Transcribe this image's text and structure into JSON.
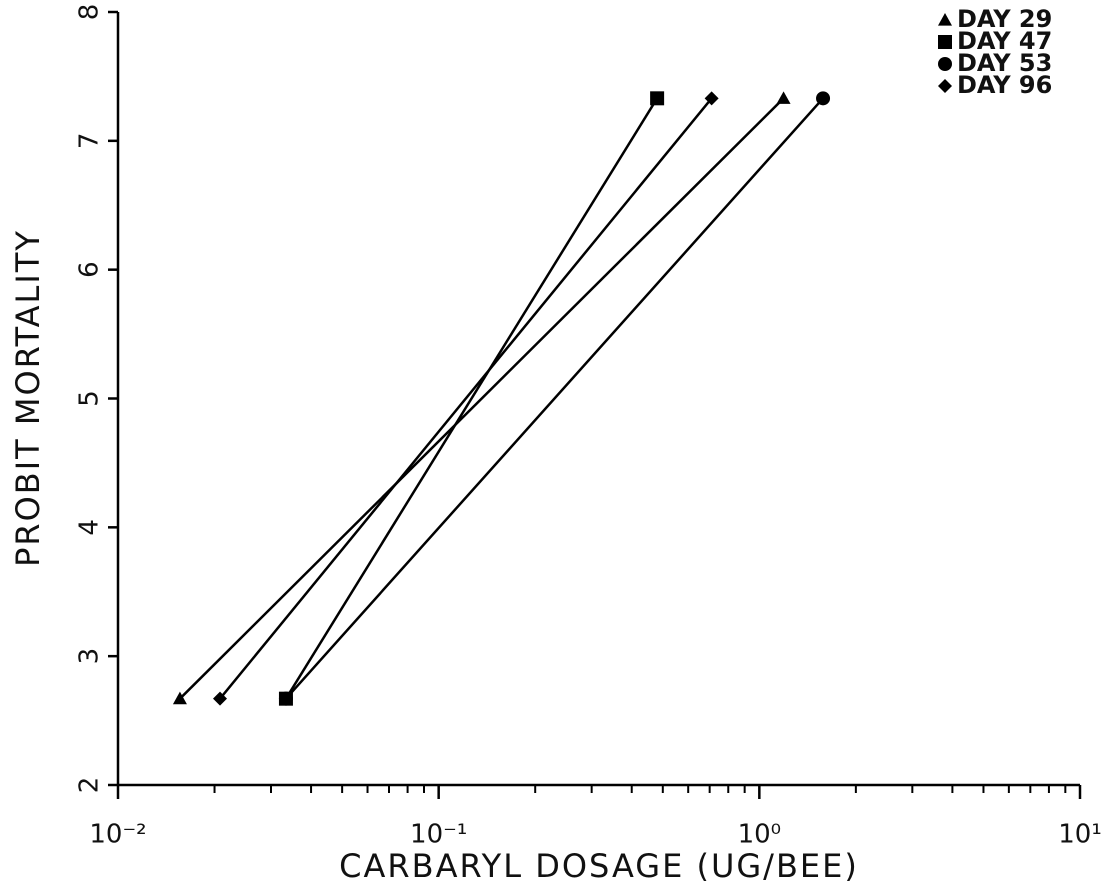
{
  "chart_data": {
    "type": "line",
    "xlabel": "CARBARYL DOSAGE (UG/BEE)",
    "ylabel": "PROBIT MORTALITY",
    "xscale": "log",
    "xlim": [
      0.01,
      10
    ],
    "xticks": [
      {
        "value": 0.01,
        "label": "10⁻²"
      },
      {
        "value": 0.1,
        "label": "10⁻¹"
      },
      {
        "value": 1,
        "label": "10⁰"
      },
      {
        "value": 10,
        "label": "10¹"
      }
    ],
    "xminorticks": [
      0.02,
      0.03,
      0.04,
      0.05,
      0.06,
      0.07,
      0.08,
      0.09,
      0.2,
      0.3,
      0.4,
      0.5,
      0.6,
      0.7,
      0.8,
      0.9,
      2,
      3,
      4,
      5,
      6,
      7,
      8,
      9
    ],
    "ylim": [
      2,
      8
    ],
    "yticks": [
      2,
      3,
      4,
      5,
      6,
      7,
      8
    ],
    "legend": "upper right",
    "series": [
      {
        "name": "DAY 29",
        "marker": "triangle",
        "color": "#000000",
        "x": [
          0.0156,
          1.19
        ],
        "values": [
          2.67,
          7.33
        ]
      },
      {
        "name": "DAY 47",
        "marker": "square",
        "color": "#000000",
        "x": [
          0.0334,
          0.48
        ],
        "values": [
          2.67,
          7.33
        ]
      },
      {
        "name": "DAY 53",
        "marker": "circle",
        "color": "#000000",
        "x": [
          0.0334,
          1.58
        ],
        "values": [
          2.67,
          7.33
        ]
      },
      {
        "name": "DAY 96",
        "marker": "diamond",
        "color": "#000000",
        "x": [
          0.0208,
          0.71
        ],
        "values": [
          2.67,
          7.33
        ]
      }
    ]
  }
}
